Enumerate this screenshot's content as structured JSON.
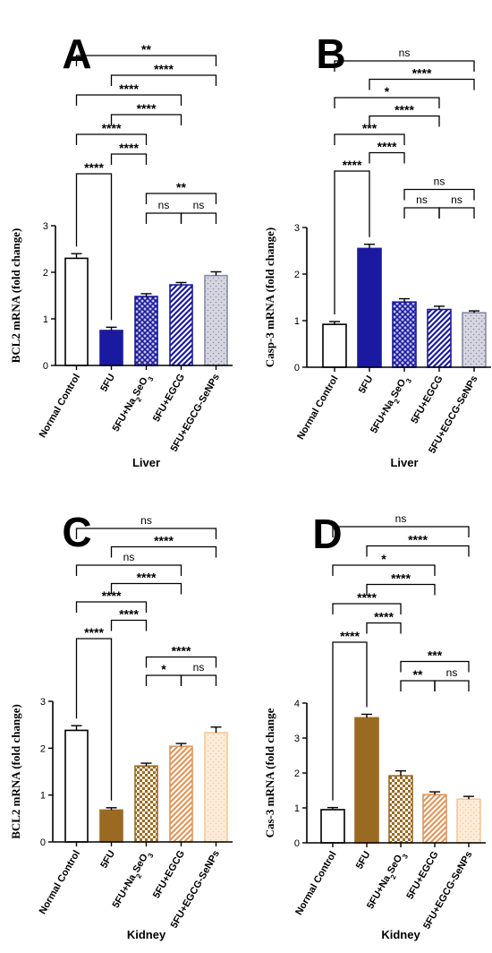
{
  "chart_data": [
    {
      "panel": "A",
      "type": "bar",
      "ylabel": "BCL2 mRNA (fold change)",
      "xlabel": "Liver",
      "ylim": [
        0,
        3
      ],
      "yticks": [
        0,
        1,
        2,
        3
      ],
      "categories": [
        "Normal Control",
        "5FU",
        "5FU+Na2SeO3",
        "5FU+EGCG",
        "5FU+EGCG-SeNPs"
      ],
      "values": [
        2.3,
        0.75,
        1.48,
        1.73,
        1.93
      ],
      "errors": [
        0.1,
        0.07,
        0.06,
        0.05,
        0.08
      ],
      "bar_colors": [
        "#ffffff",
        "#1a1aa0",
        "#1a1aa0",
        "#1a1aa0",
        "#8a8aa6"
      ],
      "bar_patterns": [
        "none",
        "solid",
        "grid",
        "diag",
        "dots"
      ],
      "comparisons": [
        {
          "from": 0,
          "to": 1,
          "label": "****"
        },
        {
          "from": 1,
          "to": 2,
          "label": "****"
        },
        {
          "from": 2,
          "to": 3,
          "label": "ns"
        },
        {
          "from": 3,
          "to": 4,
          "label": "ns"
        },
        {
          "from": 2,
          "to": 4,
          "label": "**"
        },
        {
          "from": 0,
          "to": 2,
          "label": "****"
        },
        {
          "from": 1,
          "to": 3,
          "label": "****"
        },
        {
          "from": 0,
          "to": 3,
          "label": "****"
        },
        {
          "from": 1,
          "to": 4,
          "label": "****"
        },
        {
          "from": 0,
          "to": 4,
          "label": "**"
        }
      ]
    },
    {
      "panel": "B",
      "type": "bar",
      "ylabel": "Casp-3 mRNA (fold change)",
      "xlabel": "Liver",
      "ylim": [
        0,
        3
      ],
      "yticks": [
        0,
        1,
        2,
        3
      ],
      "categories": [
        "Normal Control",
        "5FU",
        "5FU+Na2SeO3",
        "5FU+EGCG",
        "5FU+EGCG-SeNPs"
      ],
      "values": [
        0.92,
        2.55,
        1.4,
        1.24,
        1.17
      ],
      "errors": [
        0.06,
        0.09,
        0.07,
        0.07,
        0.04
      ],
      "bar_colors": [
        "#ffffff",
        "#1a1aa0",
        "#1a1aa0",
        "#1a1aa0",
        "#8a8aa6"
      ],
      "bar_patterns": [
        "none",
        "solid",
        "grid",
        "diag",
        "dots"
      ],
      "comparisons": [
        {
          "from": 0,
          "to": 1,
          "label": "****"
        },
        {
          "from": 1,
          "to": 2,
          "label": "****"
        },
        {
          "from": 2,
          "to": 3,
          "label": "ns"
        },
        {
          "from": 3,
          "to": 4,
          "label": "ns"
        },
        {
          "from": 2,
          "to": 4,
          "label": "ns"
        },
        {
          "from": 0,
          "to": 2,
          "label": "***"
        },
        {
          "from": 1,
          "to": 3,
          "label": "****"
        },
        {
          "from": 0,
          "to": 3,
          "label": "*"
        },
        {
          "from": 1,
          "to": 4,
          "label": "****"
        },
        {
          "from": 0,
          "to": 4,
          "label": "ns"
        }
      ]
    },
    {
      "panel": "C",
      "type": "bar",
      "ylabel": "BCL2 mRNA (fold change)",
      "xlabel": "Kidney",
      "ylim": [
        0,
        3
      ],
      "yticks": [
        0,
        1,
        2,
        3
      ],
      "categories": [
        "Normal Control",
        "5FU",
        "5FU+Na2SeO3",
        "5FU+EGCG",
        "5FU+EGCG-SeNPs"
      ],
      "values": [
        2.38,
        0.68,
        1.62,
        2.04,
        2.33
      ],
      "errors": [
        0.1,
        0.05,
        0.06,
        0.06,
        0.12
      ],
      "bar_colors": [
        "#ffffff",
        "#9a6a22",
        "#9a6a22",
        "#e0965a",
        "#f6c894"
      ],
      "bar_patterns": [
        "none",
        "solid",
        "check",
        "diag",
        "dots"
      ],
      "comparisons": [
        {
          "from": 0,
          "to": 1,
          "label": "****"
        },
        {
          "from": 1,
          "to": 2,
          "label": "****"
        },
        {
          "from": 2,
          "to": 3,
          "label": "*"
        },
        {
          "from": 3,
          "to": 4,
          "label": "ns"
        },
        {
          "from": 2,
          "to": 4,
          "label": "****"
        },
        {
          "from": 0,
          "to": 2,
          "label": "****"
        },
        {
          "from": 1,
          "to": 3,
          "label": "****"
        },
        {
          "from": 0,
          "to": 3,
          "label": "ns"
        },
        {
          "from": 1,
          "to": 4,
          "label": "****"
        },
        {
          "from": 0,
          "to": 4,
          "label": "ns"
        }
      ]
    },
    {
      "panel": "D",
      "type": "bar",
      "ylabel": "Cas-3 mRNA (fold change",
      "xlabel": "Kidney",
      "ylim": [
        0,
        4
      ],
      "yticks": [
        0,
        1,
        2,
        3,
        4
      ],
      "categories": [
        "Normal Control",
        "5FU",
        "5FU+Na2SeO3",
        "5FU+EGCG",
        "5FU+EGCG-SeNPs"
      ],
      "values": [
        0.95,
        3.58,
        1.92,
        1.38,
        1.25
      ],
      "errors": [
        0.06,
        0.1,
        0.14,
        0.08,
        0.08
      ],
      "bar_colors": [
        "#ffffff",
        "#9a6a22",
        "#9a6a22",
        "#e0965a",
        "#f6c894"
      ],
      "bar_patterns": [
        "none",
        "solid",
        "check",
        "diag",
        "dots"
      ],
      "comparisons": [
        {
          "from": 0,
          "to": 1,
          "label": "****"
        },
        {
          "from": 1,
          "to": 2,
          "label": "****"
        },
        {
          "from": 2,
          "to": 3,
          "label": "**"
        },
        {
          "from": 3,
          "to": 4,
          "label": "ns"
        },
        {
          "from": 2,
          "to": 4,
          "label": "***"
        },
        {
          "from": 0,
          "to": 2,
          "label": "****"
        },
        {
          "from": 1,
          "to": 3,
          "label": "****"
        },
        {
          "from": 0,
          "to": 3,
          "label": "*"
        },
        {
          "from": 1,
          "to": 4,
          "label": "****"
        },
        {
          "from": 0,
          "to": 4,
          "label": "ns"
        }
      ]
    }
  ]
}
